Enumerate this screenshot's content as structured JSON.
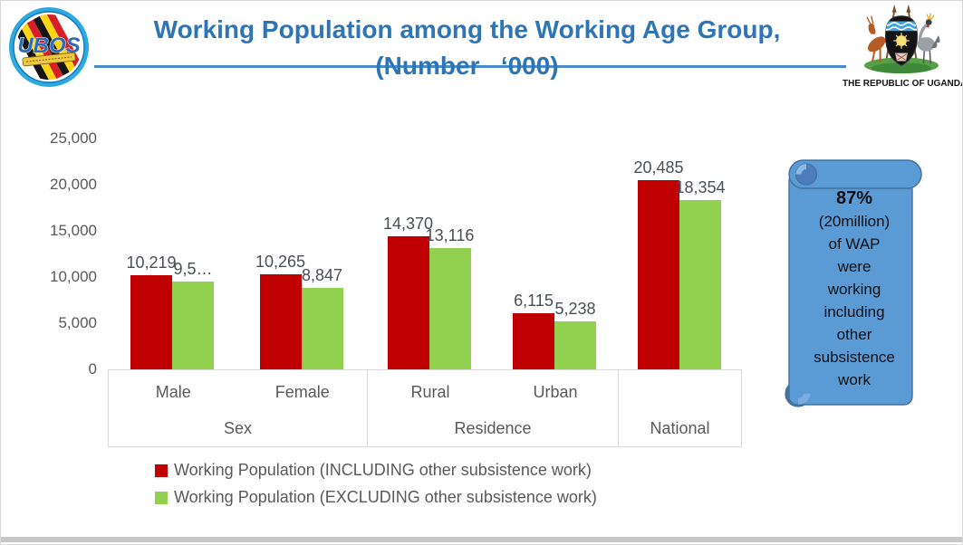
{
  "slide": {
    "title_line1": "Working Population among the Working Age Group,",
    "title_line2": "(Number   ‘000)",
    "title_color": "#2E75B6",
    "rule_color": "#4A8CCB",
    "footer_bar_color": "#C8C8C8"
  },
  "logos": {
    "ubos": {
      "text": "UBOS"
    },
    "uganda": {
      "caption": "THE REPUBLIC OF UGANDA"
    }
  },
  "callout": {
    "fill": "#5B9BD5",
    "border": "#41719C",
    "lines": [
      "87%",
      "(20million)",
      "of WAP",
      "were",
      "working",
      "including",
      "other",
      "subsistence",
      "work"
    ]
  },
  "chart_data": {
    "type": "bar",
    "title": "Working Population among the Working Age Group, (Number ‘000)",
    "categories": [
      "Male",
      "Female",
      "Rural",
      "Urban",
      "National"
    ],
    "groups": [
      {
        "label": "Sex",
        "categories": [
          "Male",
          "Female"
        ]
      },
      {
        "label": "Residence",
        "categories": [
          "Rural",
          "Urban"
        ]
      },
      {
        "label": "National",
        "categories": []
      }
    ],
    "series": [
      {
        "name": "Working Population (INCLUDING other subsistence work)",
        "color": "#C00000",
        "values": [
          10219,
          10265,
          14370,
          6115,
          20485
        ],
        "labels": [
          "10,219",
          "10,265",
          "14,370",
          "6,115",
          "20,485"
        ]
      },
      {
        "name": "Working Population (EXCLUDING other subsistence work)",
        "color": "#92D050",
        "values": [
          9507,
          8847,
          13116,
          5238,
          18354
        ],
        "labels": [
          "9,5…",
          "8,847",
          "13,116",
          "5,238",
          "18,354"
        ]
      }
    ],
    "ylim": [
      0,
      25000
    ],
    "yticks": [
      "0",
      "5,000",
      "10,000",
      "15,000",
      "20,000",
      "25,000"
    ],
    "grid": false,
    "legend_position": "bottom"
  }
}
